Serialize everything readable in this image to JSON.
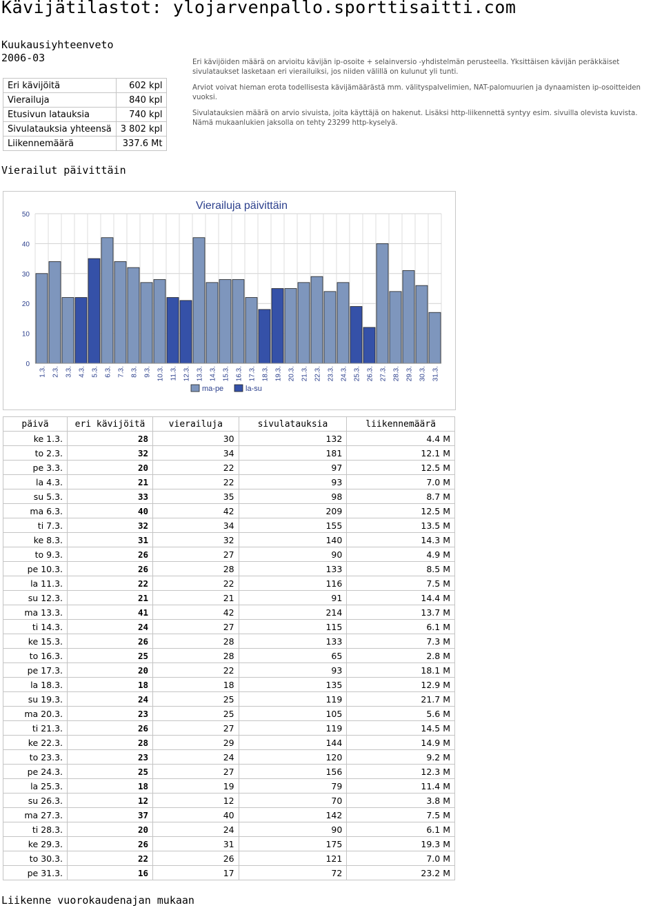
{
  "page": {
    "title": "Kävijätilastot: ylojarvenpallo.sporttisaitti.com",
    "summary_heading": "Kuukausiyhteenveto\n2006-03",
    "daily_heading": "Vierailut päivittäin",
    "hourly_heading": "Liikenne vuorokaudenajan mukaan"
  },
  "summary": [
    {
      "label": "Eri kävijöitä",
      "value": "602 kpl"
    },
    {
      "label": "Vierailuja",
      "value": "840 kpl"
    },
    {
      "label": "Etusivun latauksia",
      "value": "740 kpl"
    },
    {
      "label": "Sivulatauksia yhteensä",
      "value": "3 802 kpl"
    },
    {
      "label": "Liikennemäärä",
      "value": "337.6 Mt"
    }
  ],
  "notes": [
    "Eri kävijöiden määrä on arvioitu kävijän ip-osoite + selainversio -yhdistelmän perusteella. Yksittäisen kävijän peräkkäiset\nsivulataukset lasketaan eri vierailuiksi, jos niiden välillä on kulunut yli tunti.",
    "Arviot voivat hieman erota todellisesta kävijämäärästä mm. välityspalvelimien, NAT-palomuurien ja dynaamisten ip-osoitteiden\nvuoksi.",
    "Sivulatauksien määrä on arvio sivuista, joita käyttäjä on hakenut. Lisäksi http-liikennettä syntyy esim. sivuilla olevista kuvista.\nNämä mukaanlukien jaksolla on tehty 23299 http-kyselyä."
  ],
  "table_headers": {
    "day": "päivä",
    "unique": "eri kävijöitä",
    "visits": "vierailuja",
    "pageloads": "sivulatauksia",
    "traffic": "liikennemäärä"
  },
  "daily_rows": [
    {
      "day": "ke 1.3.",
      "unique": "28",
      "visits": "30",
      "pageloads": "132",
      "traffic": "4.4 M"
    },
    {
      "day": "to 2.3.",
      "unique": "32",
      "visits": "34",
      "pageloads": "181",
      "traffic": "12.1 M"
    },
    {
      "day": "pe 3.3.",
      "unique": "20",
      "visits": "22",
      "pageloads": "97",
      "traffic": "12.5 M"
    },
    {
      "day": "la 4.3.",
      "unique": "21",
      "visits": "22",
      "pageloads": "93",
      "traffic": "7.0 M"
    },
    {
      "day": "su 5.3.",
      "unique": "33",
      "visits": "35",
      "pageloads": "98",
      "traffic": "8.7 M"
    },
    {
      "day": "ma 6.3.",
      "unique": "40",
      "visits": "42",
      "pageloads": "209",
      "traffic": "12.5 M"
    },
    {
      "day": "ti 7.3.",
      "unique": "32",
      "visits": "34",
      "pageloads": "155",
      "traffic": "13.5 M"
    },
    {
      "day": "ke 8.3.",
      "unique": "31",
      "visits": "32",
      "pageloads": "140",
      "traffic": "14.3 M"
    },
    {
      "day": "to 9.3.",
      "unique": "26",
      "visits": "27",
      "pageloads": "90",
      "traffic": "4.9 M"
    },
    {
      "day": "pe 10.3.",
      "unique": "26",
      "visits": "28",
      "pageloads": "133",
      "traffic": "8.5 M"
    },
    {
      "day": "la 11.3.",
      "unique": "22",
      "visits": "22",
      "pageloads": "116",
      "traffic": "7.5 M"
    },
    {
      "day": "su 12.3.",
      "unique": "21",
      "visits": "21",
      "pageloads": "91",
      "traffic": "14.4 M"
    },
    {
      "day": "ma 13.3.",
      "unique": "41",
      "visits": "42",
      "pageloads": "214",
      "traffic": "13.7 M"
    },
    {
      "day": "ti 14.3.",
      "unique": "24",
      "visits": "27",
      "pageloads": "115",
      "traffic": "6.1 M"
    },
    {
      "day": "ke 15.3.",
      "unique": "26",
      "visits": "28",
      "pageloads": "133",
      "traffic": "7.3 M"
    },
    {
      "day": "to 16.3.",
      "unique": "25",
      "visits": "28",
      "pageloads": "65",
      "traffic": "2.8 M"
    },
    {
      "day": "pe 17.3.",
      "unique": "20",
      "visits": "22",
      "pageloads": "93",
      "traffic": "18.1 M"
    },
    {
      "day": "la 18.3.",
      "unique": "18",
      "visits": "18",
      "pageloads": "135",
      "traffic": "12.9 M"
    },
    {
      "day": "su 19.3.",
      "unique": "24",
      "visits": "25",
      "pageloads": "119",
      "traffic": "21.7 M"
    },
    {
      "day": "ma 20.3.",
      "unique": "23",
      "visits": "25",
      "pageloads": "105",
      "traffic": "5.6 M"
    },
    {
      "day": "ti 21.3.",
      "unique": "26",
      "visits": "27",
      "pageloads": "119",
      "traffic": "14.5 M"
    },
    {
      "day": "ke 22.3.",
      "unique": "28",
      "visits": "29",
      "pageloads": "144",
      "traffic": "14.9 M"
    },
    {
      "day": "to 23.3.",
      "unique": "23",
      "visits": "24",
      "pageloads": "120",
      "traffic": "9.2 M"
    },
    {
      "day": "pe 24.3.",
      "unique": "25",
      "visits": "27",
      "pageloads": "156",
      "traffic": "12.3 M"
    },
    {
      "day": "la 25.3.",
      "unique": "18",
      "visits": "19",
      "pageloads": "79",
      "traffic": "11.4 M"
    },
    {
      "day": "su 26.3.",
      "unique": "12",
      "visits": "12",
      "pageloads": "70",
      "traffic": "3.8 M"
    },
    {
      "day": "ma 27.3.",
      "unique": "37",
      "visits": "40",
      "pageloads": "142",
      "traffic": "7.5 M"
    },
    {
      "day": "ti 28.3.",
      "unique": "20",
      "visits": "24",
      "pageloads": "90",
      "traffic": "6.1 M"
    },
    {
      "day": "ke 29.3.",
      "unique": "26",
      "visits": "31",
      "pageloads": "175",
      "traffic": "19.3 M"
    },
    {
      "day": "to 30.3.",
      "unique": "22",
      "visits": "26",
      "pageloads": "121",
      "traffic": "7.0 M"
    },
    {
      "day": "pe 31.3.",
      "unique": "16",
      "visits": "17",
      "pageloads": "72",
      "traffic": "23.2 M"
    }
  ],
  "chart_data": {
    "type": "bar",
    "title": "Vierailuja päivittäin",
    "categories": [
      "1.3.",
      "2.3.",
      "3.3.",
      "4.3.",
      "5.3.",
      "6.3.",
      "7.3.",
      "8.3.",
      "9.3.",
      "10.3.",
      "11.3.",
      "12.3.",
      "13.3.",
      "14.3.",
      "15.3.",
      "16.3.",
      "17.3.",
      "18.3.",
      "19.3.",
      "20.3.",
      "21.3.",
      "22.3.",
      "23.3.",
      "24.3.",
      "25.3.",
      "26.3.",
      "27.3.",
      "28.3.",
      "29.3.",
      "30.3.",
      "31.3."
    ],
    "values": [
      30,
      34,
      22,
      22,
      35,
      42,
      34,
      32,
      27,
      28,
      22,
      21,
      42,
      27,
      28,
      28,
      22,
      18,
      25,
      25,
      27,
      29,
      24,
      27,
      19,
      12,
      40,
      24,
      31,
      26,
      17
    ],
    "weekend": [
      false,
      false,
      false,
      true,
      true,
      false,
      false,
      false,
      false,
      false,
      true,
      true,
      false,
      false,
      false,
      false,
      false,
      true,
      true,
      false,
      false,
      false,
      false,
      false,
      true,
      true,
      false,
      false,
      false,
      false,
      false
    ],
    "series": [
      {
        "name": "ma-pe",
        "color": "#7e96bd"
      },
      {
        "name": "la-su",
        "color": "#3551a8"
      }
    ],
    "yticks": [
      "0",
      "10",
      "20",
      "30",
      "40",
      "50"
    ],
    "ylim": [
      0,
      50
    ],
    "grid": true,
    "legend": "bottom",
    "xlabel": "",
    "ylabel": ""
  }
}
